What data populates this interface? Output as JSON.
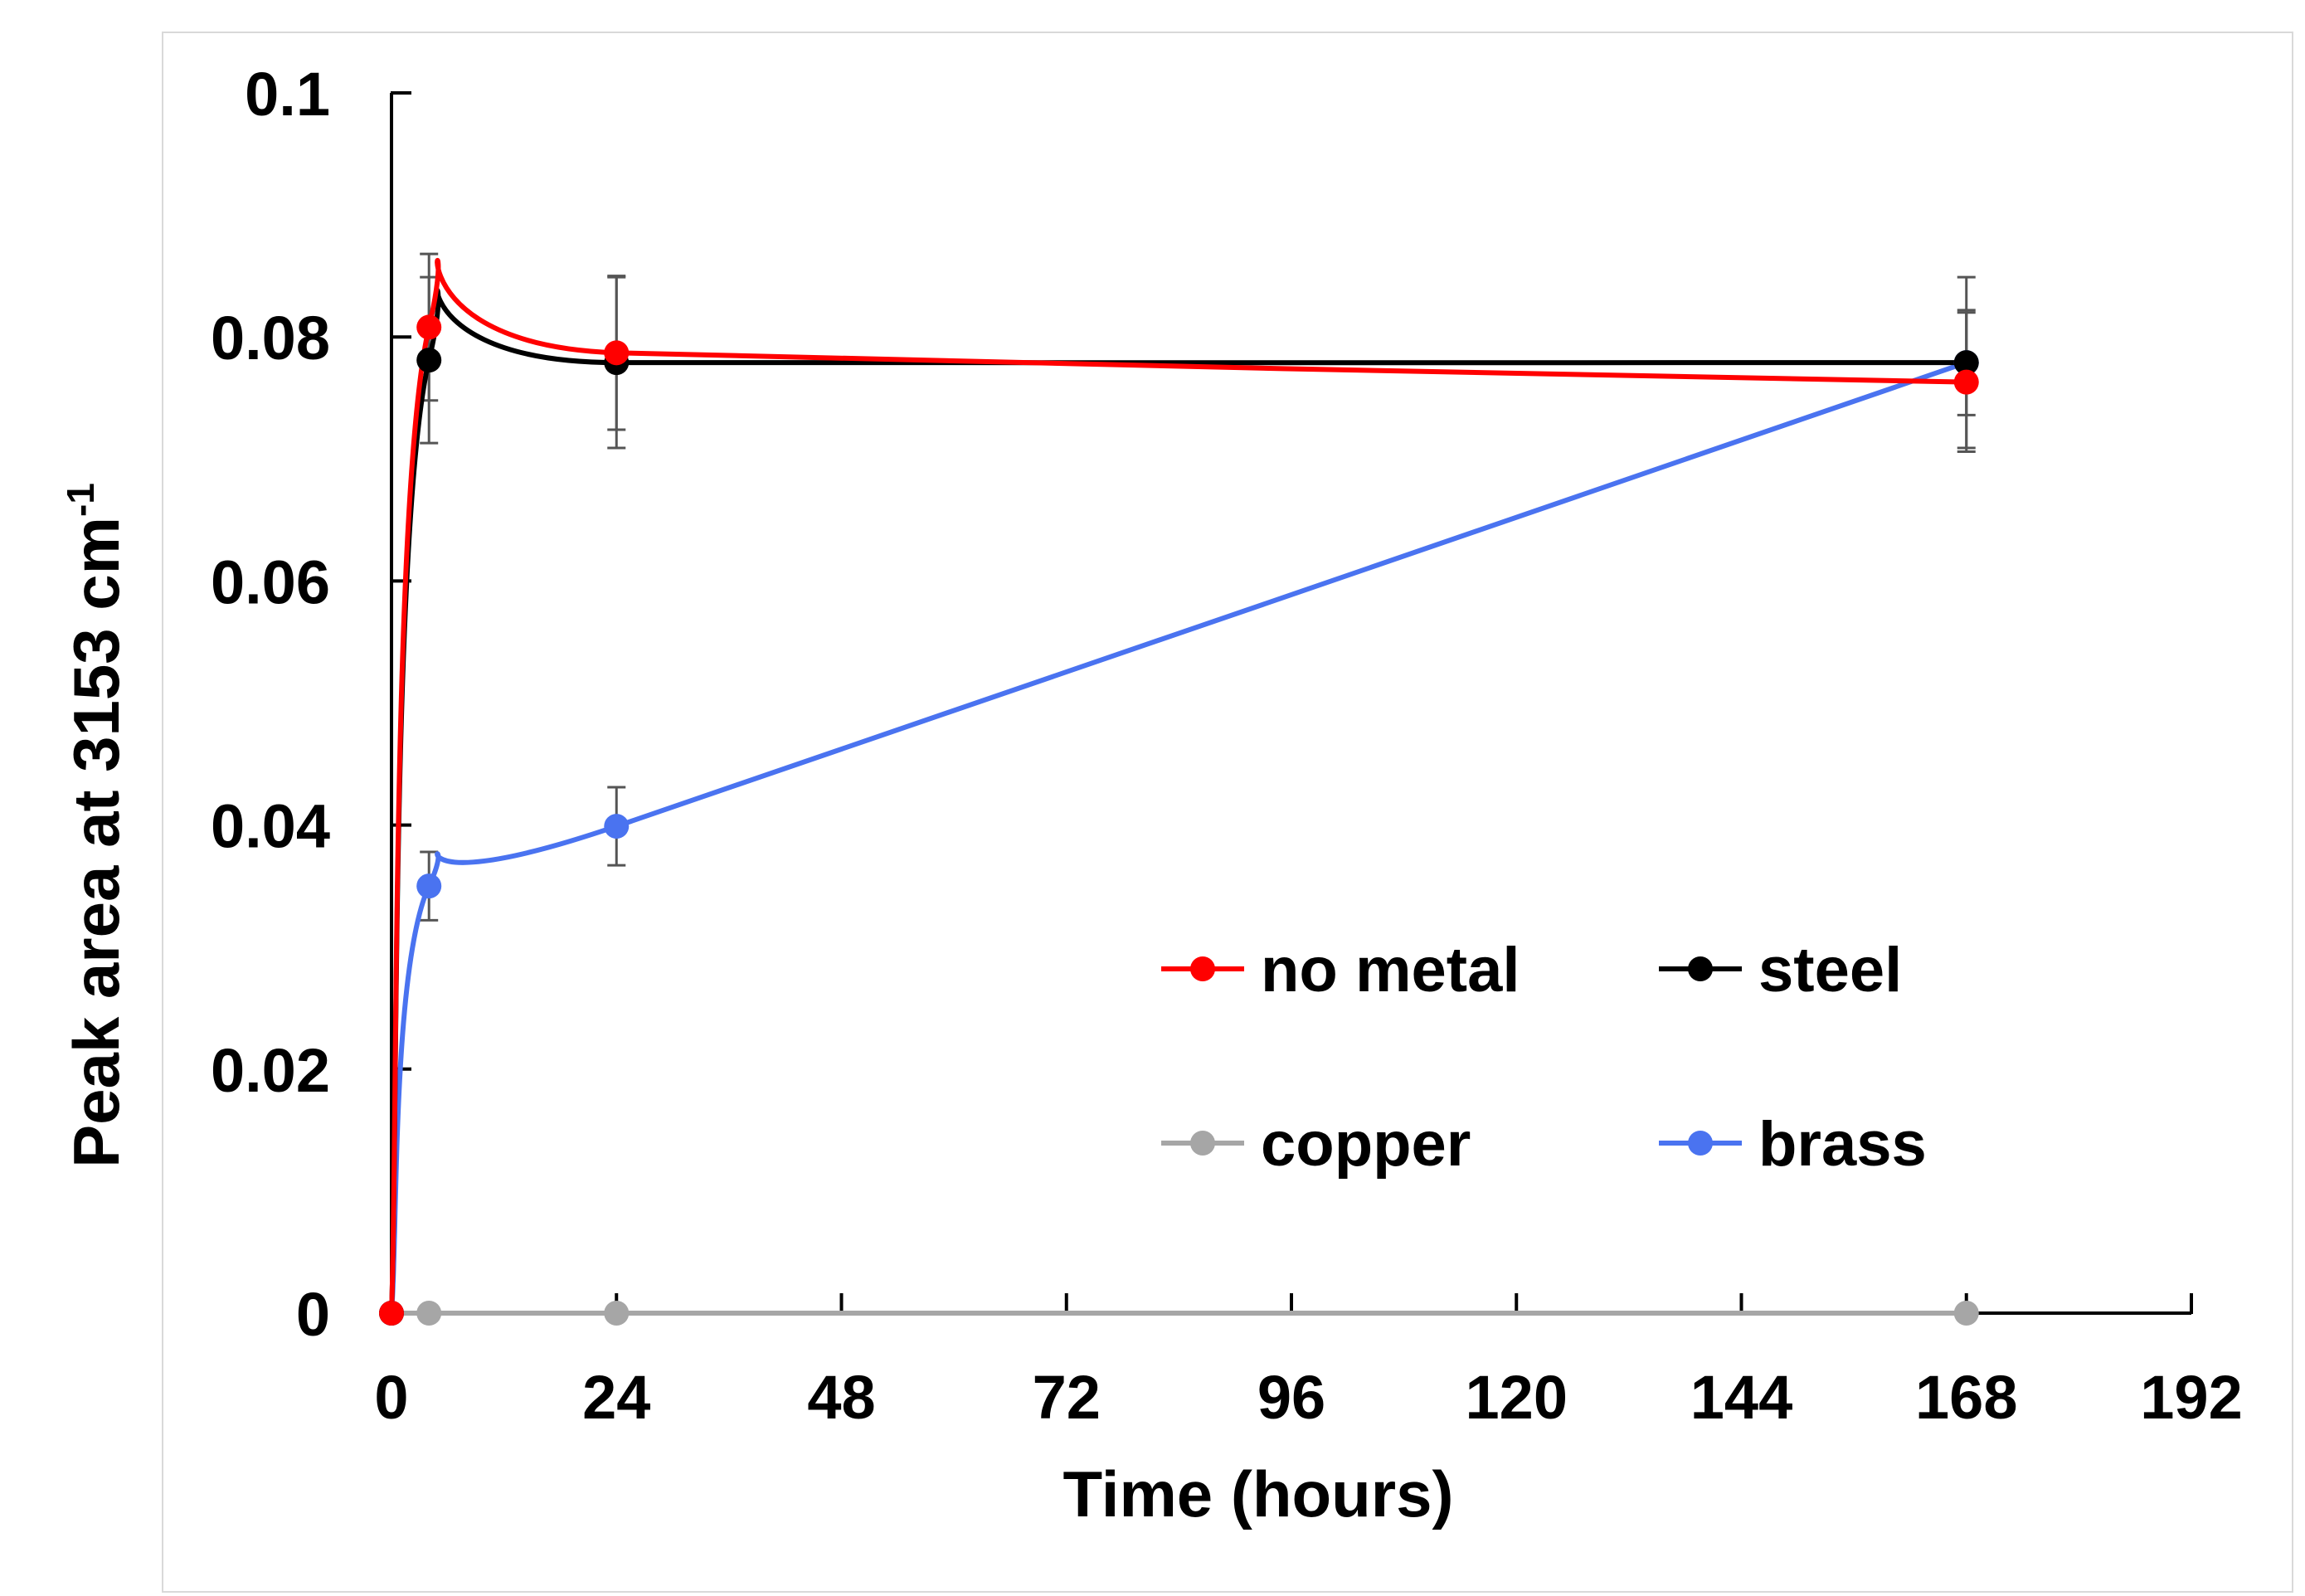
{
  "chart_data": {
    "type": "line",
    "title": "",
    "xlabel": "Time (hours)",
    "ylabel": "Peak area at 3153 cm",
    "ylabel_superscript": "-1",
    "xlim": [
      0,
      192
    ],
    "ylim": [
      0,
      0.1
    ],
    "x_ticks": [
      0,
      24,
      48,
      72,
      96,
      120,
      144,
      168,
      192
    ],
    "x_tick_labels": [
      "0",
      "24",
      "48",
      "72",
      "96",
      "120",
      "144",
      "168",
      "192"
    ],
    "y_ticks": [
      0,
      0.02,
      0.04,
      0.06,
      0.08,
      0.1
    ],
    "y_tick_labels": [
      "0",
      "0.02",
      "0.04",
      "0.06",
      "0.08",
      "0.1"
    ],
    "grid": false,
    "legend_position": "center-right",
    "series": [
      {
        "name": "no metal",
        "color": "#ff0000",
        "x": [
          0,
          4,
          24,
          168
        ],
        "y": [
          0,
          0.0808,
          0.0787,
          0.0763
        ],
        "error": [
          0,
          0.006,
          0.0063,
          0.0057
        ]
      },
      {
        "name": "steel",
        "color": "#000000",
        "x": [
          0,
          4,
          24,
          168
        ],
        "y": [
          0,
          0.0781,
          0.0779,
          0.0779
        ],
        "error": [
          0,
          0.0068,
          0.007,
          0.007
        ]
      },
      {
        "name": "copper",
        "color": "#a6a6a6",
        "x": [
          0,
          4,
          24,
          168
        ],
        "y": [
          0,
          0,
          0,
          0
        ],
        "error": [
          0,
          0,
          0,
          0
        ]
      },
      {
        "name": "brass",
        "color": "#4a73f0",
        "x": [
          0,
          4,
          24,
          168
        ],
        "y": [
          0,
          0.035,
          0.0399,
          0.0779
        ],
        "error": [
          0,
          0.0028,
          0.0032,
          0.0043
        ]
      }
    ]
  }
}
